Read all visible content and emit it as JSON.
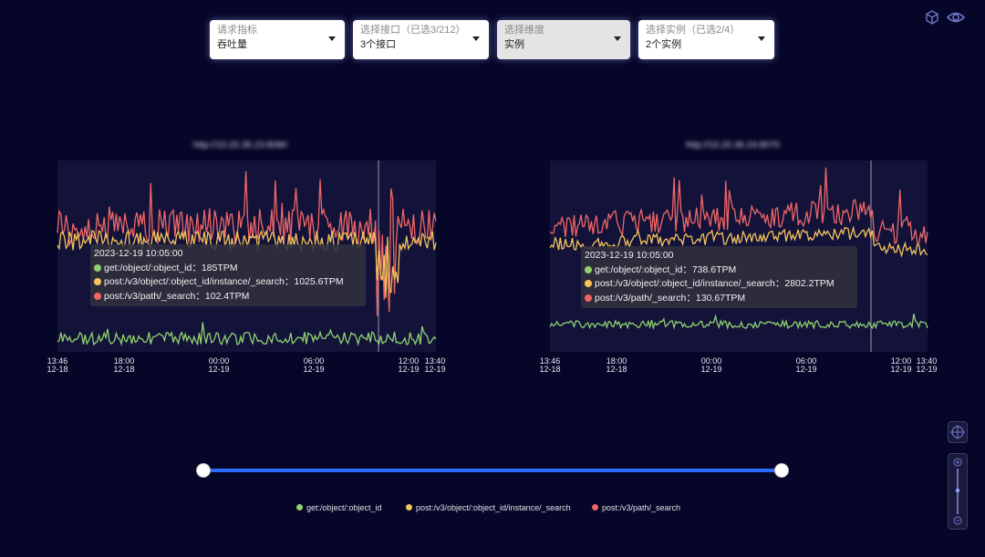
{
  "filters": [
    {
      "placeholder": "请求指标",
      "value": "吞吐量"
    },
    {
      "placeholder": "选择接口（已选3/212）",
      "value": "3个接口"
    },
    {
      "placeholder": "选择维度",
      "value": "实例"
    },
    {
      "placeholder": "选择实例（已选2/4）",
      "value": "2个实例"
    }
  ],
  "icons": [
    "cube-icon",
    "eye-icon",
    "locate-icon",
    "zoom-in-icon",
    "zoom-out-icon"
  ],
  "colors": {
    "get": "#8fd16f",
    "instance_search": "#f5c35a",
    "path_search": "#ee6666",
    "track": "#2d6bff"
  },
  "charts": [
    {
      "title": "http://10.20.35.23:8080",
      "x_ticks": [
        [
          "13:46",
          "12-18"
        ],
        [
          "18:00",
          "12-18"
        ],
        [
          "00:00",
          "12-19"
        ],
        [
          "06:00",
          "12-19"
        ],
        [
          "12:00",
          "12-19"
        ],
        [
          "13:40",
          "12-19"
        ]
      ],
      "tooltip": {
        "time": "2023-12-19 10:05:00",
        "rows": [
          {
            "label": "get:/object/:object_id：185TPM",
            "color": "#8fd16f"
          },
          {
            "label": "post:/v3/object/:object_id/instance/_search：1025.6TPM",
            "color": "#f5c35a"
          },
          {
            "label": "post:/v3/path/_search：102.4TPM",
            "color": "#ee6666"
          }
        ]
      }
    },
    {
      "title": "http://10.20.36.24:8070",
      "x_ticks": [
        [
          "13:46",
          "12-18"
        ],
        [
          "18:00",
          "12-18"
        ],
        [
          "00:00",
          "12-19"
        ],
        [
          "06:00",
          "12-19"
        ],
        [
          "12:00",
          "12-19"
        ],
        [
          "13:40",
          "12-19"
        ]
      ],
      "tooltip": {
        "time": "2023-12-19 10:05:00",
        "rows": [
          {
            "label": "get:/object/:object_id：738.6TPM",
            "color": "#8fd16f"
          },
          {
            "label": "post:/v3/object/:object_id/instance/_search：2802.2TPM",
            "color": "#f5c35a"
          },
          {
            "label": "post:/v3/path/_search：130.67TPM",
            "color": "#ee6666"
          }
        ]
      }
    }
  ],
  "legend": [
    {
      "label": "get:/object/:object_id",
      "color": "#8fd16f"
    },
    {
      "label": "post:/v3/object/:object_id/instance/_search",
      "color": "#f5c35a"
    },
    {
      "label": "post:/v3/path/_search",
      "color": "#ee6666"
    }
  ]
}
